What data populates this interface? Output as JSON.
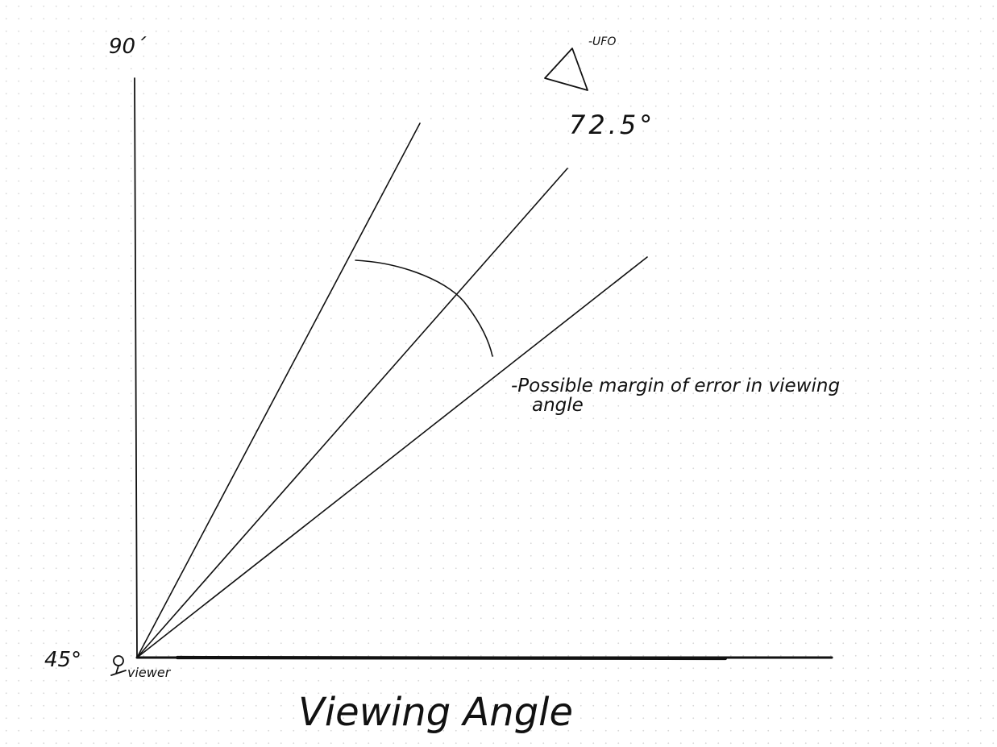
{
  "diagram": {
    "title": "Viewing Angle",
    "top_angle_label": "90´",
    "bottom_angle_label": "45°",
    "center_angle_label": "72.5°",
    "viewer_label": "viewer",
    "ufo_label": "-UFO",
    "error_label_line1": "-Possible margin of error in viewing",
    "error_label_line2": "angle"
  }
}
